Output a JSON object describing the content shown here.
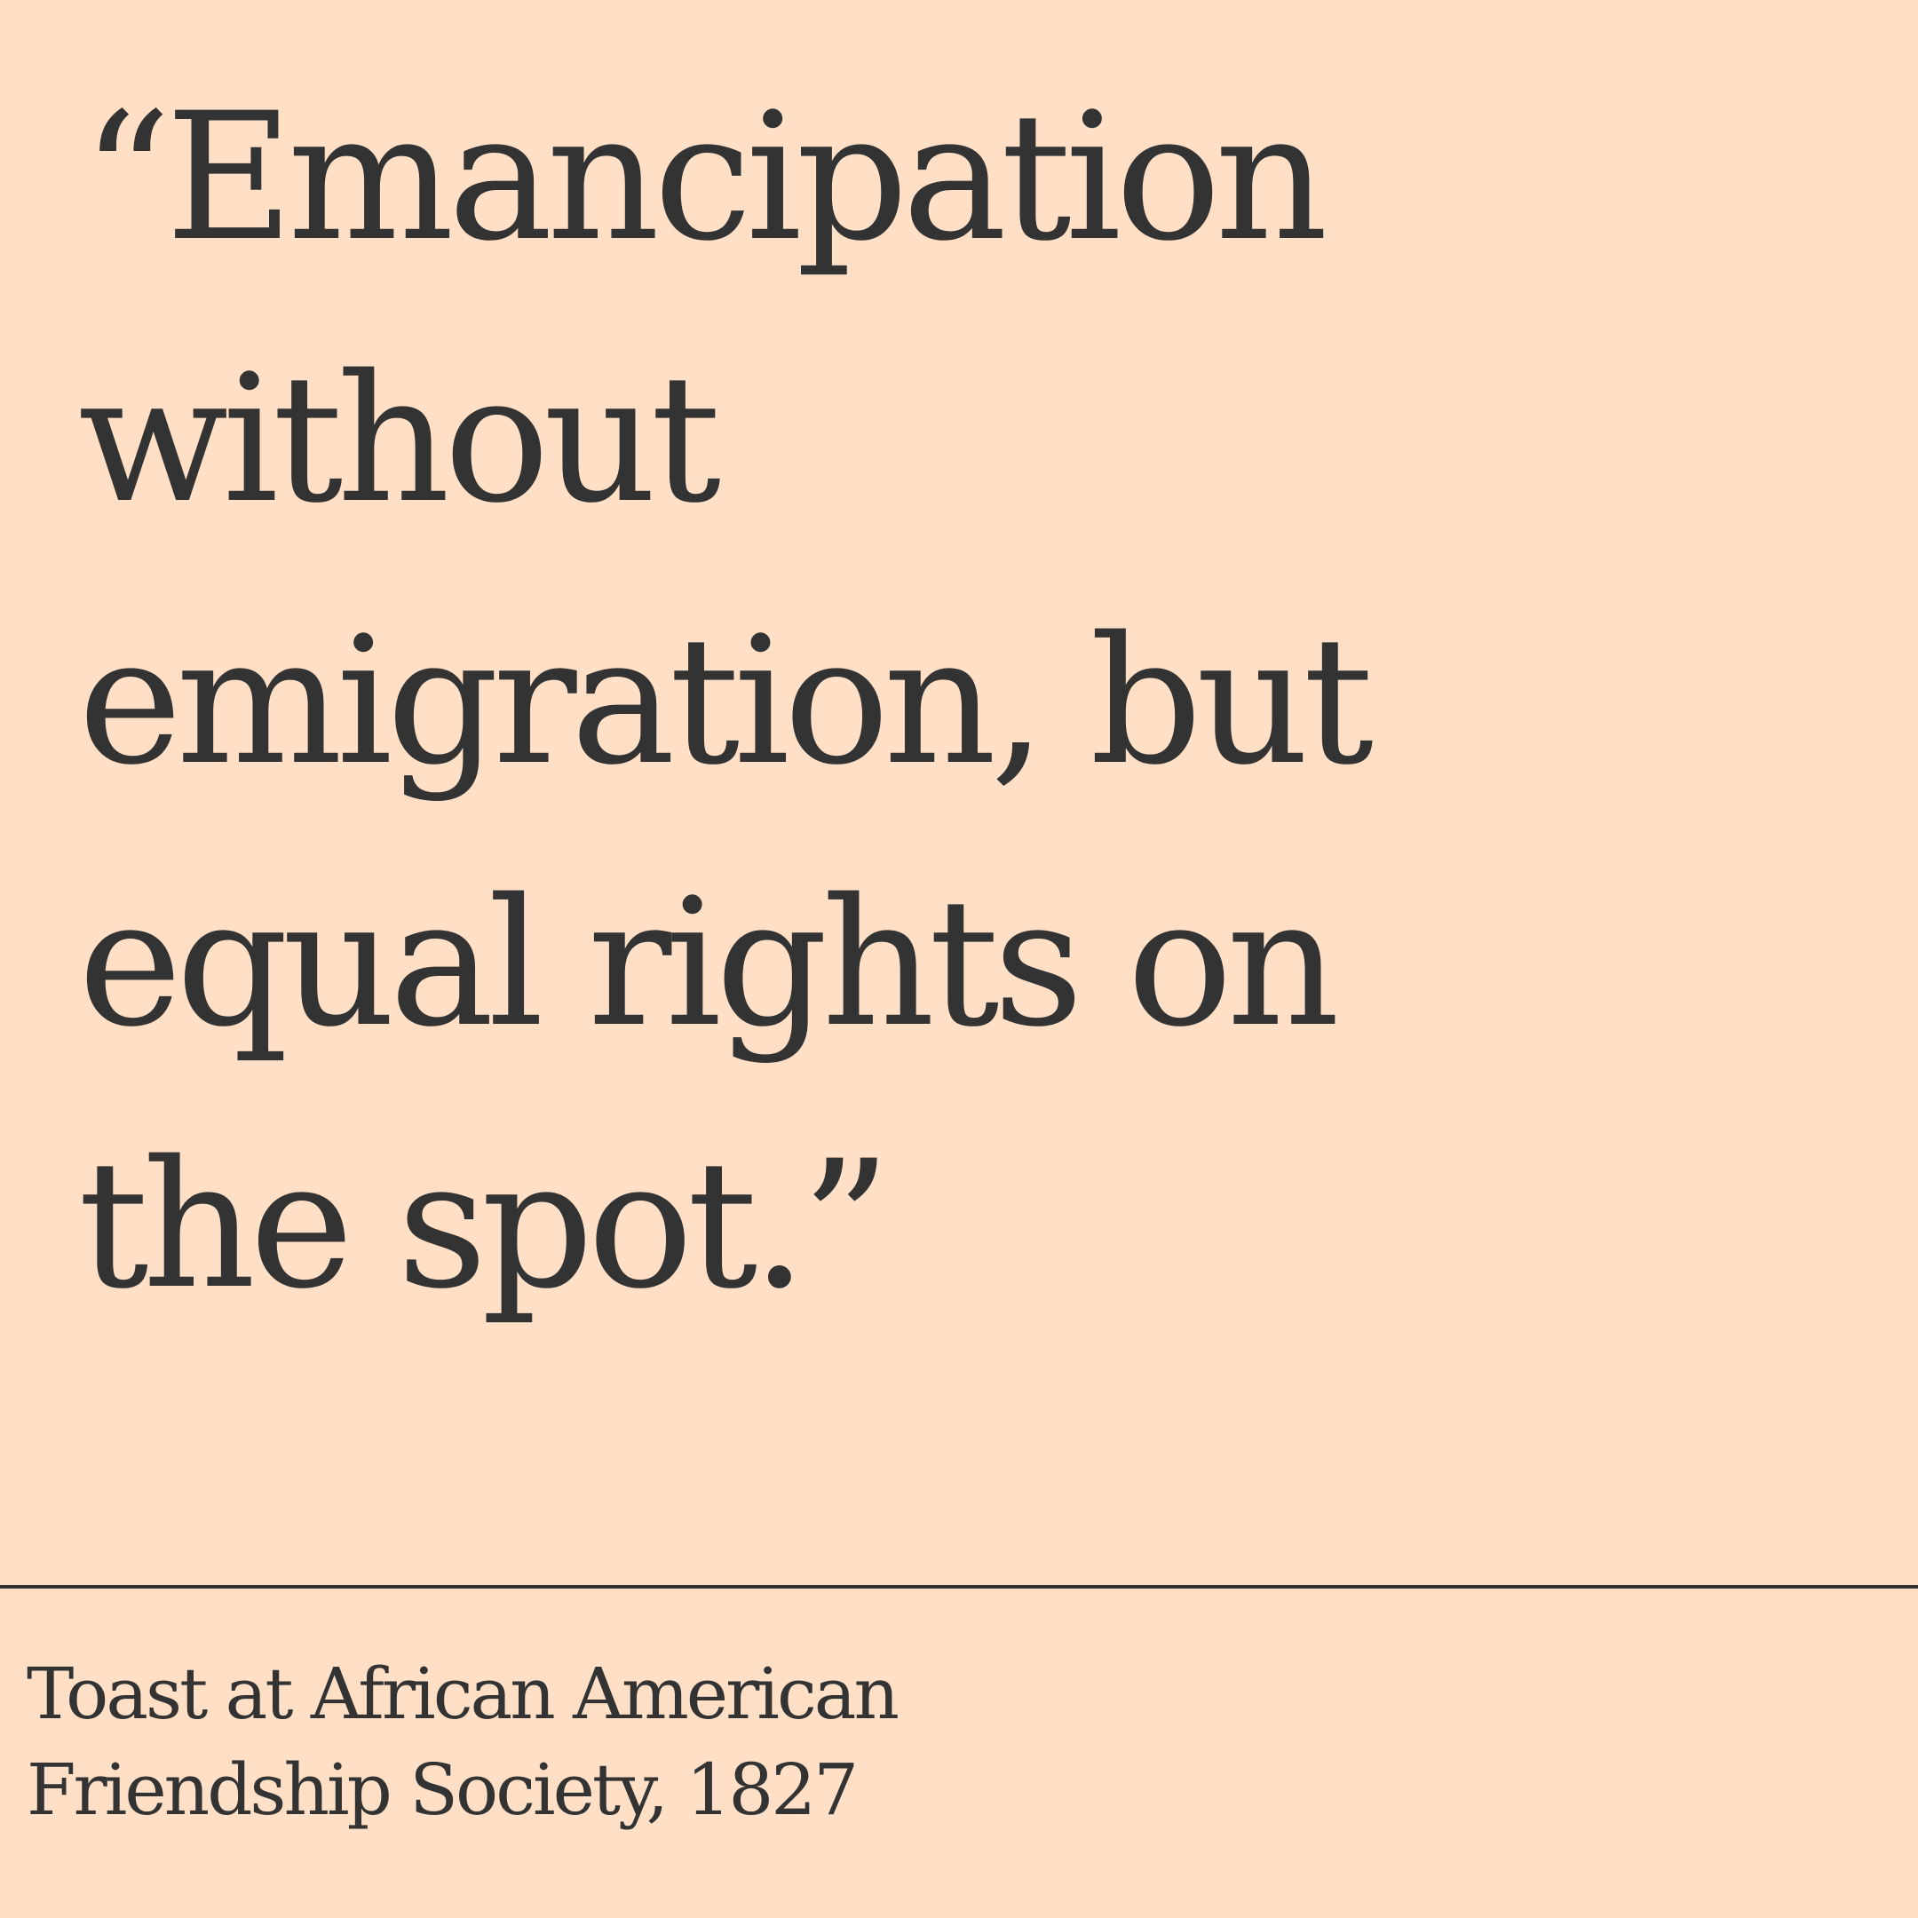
{
  "quote": {
    "lines": [
      "“Emancipation",
      "without",
      "emigration, but",
      "equal rights on",
      "the spot.”"
    ]
  },
  "attribution": {
    "lines": [
      "Toast at African American",
      "Friendship Society, 1827"
    ]
  },
  "colors": {
    "background": "#ffe0c6",
    "text": "#333333",
    "divider": "#333333"
  }
}
